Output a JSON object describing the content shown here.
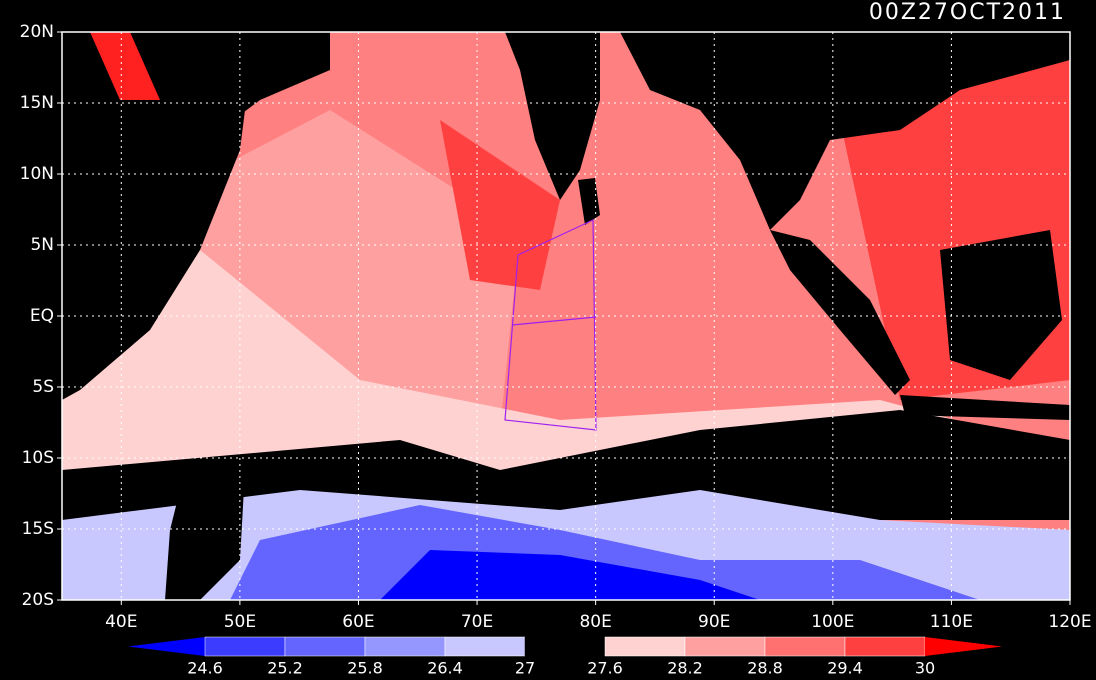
{
  "title": "00Z27OCT2011",
  "lat_labels": [
    "20N",
    "15N",
    "10N",
    "5N",
    "EQ",
    "5S",
    "10S",
    "15S",
    "20S"
  ],
  "lon_labels": [
    "40E",
    "50E",
    "60E",
    "70E",
    "80E",
    "90E",
    "100E",
    "110E",
    "120E"
  ],
  "colorbar": {
    "ticks": [
      24.6,
      25.2,
      25.8,
      26.4,
      27,
      27.6,
      28.2,
      28.8,
      29.4,
      30
    ],
    "colors": [
      "#0000ff",
      "#3c3cff",
      "#6464ff",
      "#9696ff",
      "#c8c8ff",
      "#000000",
      "#ffd2d2",
      "#ffa0a0",
      "#ff7070",
      "#ff4040",
      "#ff0000"
    ]
  }
}
